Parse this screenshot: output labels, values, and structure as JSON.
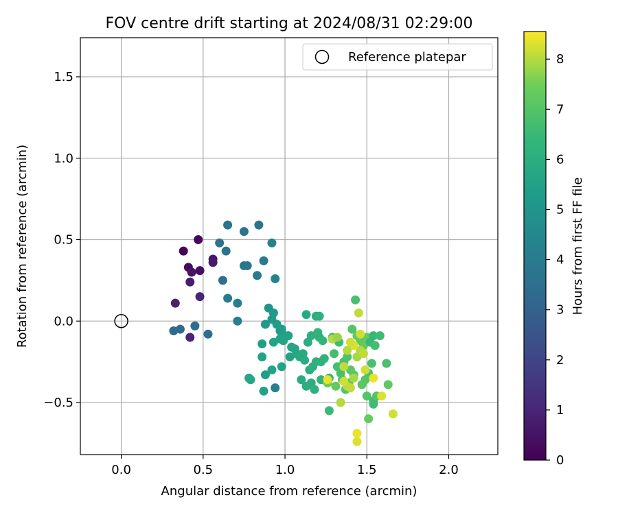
{
  "chart_data": {
    "type": "scatter",
    "title": "FOV centre drift starting at 2024/08/31 02:29:00",
    "xlabel": "Angular distance from reference (arcmin)",
    "ylabel": "Rotation from reference (arcmin)",
    "xlim": [
      -0.25,
      2.3
    ],
    "ylim": [
      -0.82,
      1.74
    ],
    "xticks": [
      0.0,
      0.5,
      1.0,
      1.5,
      2.0
    ],
    "xtick_labels": [
      "0.0",
      "0.5",
      "1.0",
      "1.5",
      "2.0"
    ],
    "yticks": [
      -0.5,
      0.0,
      0.5,
      1.0,
      1.5
    ],
    "ytick_labels": [
      "−0.5",
      "0.0",
      "0.5",
      "1.0",
      "1.5"
    ],
    "grid": true,
    "legend": {
      "placement": "top-right",
      "entries": [
        "Reference platepar"
      ]
    },
    "reference_point": {
      "x": 0.0,
      "y": 0.0,
      "label": "Reference platepar"
    },
    "colorbar": {
      "label": "Hours from first FF file",
      "colormap": "viridis",
      "range": [
        0,
        8.55
      ],
      "ticks": [
        0,
        1,
        2,
        3,
        4,
        5,
        6,
        7,
        8
      ],
      "tick_labels": [
        "0",
        "1",
        "2",
        "3",
        "4",
        "5",
        "6",
        "7",
        "8"
      ]
    },
    "points": [
      {
        "x": 0.38,
        "y": 0.43,
        "h": 0.1
      },
      {
        "x": 0.47,
        "y": 0.5,
        "h": 0.2
      },
      {
        "x": 0.41,
        "y": 0.33,
        "h": 0.3
      },
      {
        "x": 0.48,
        "y": 0.31,
        "h": 0.4
      },
      {
        "x": 0.43,
        "y": 0.3,
        "h": 0.5
      },
      {
        "x": 0.56,
        "y": 0.38,
        "h": 0.6
      },
      {
        "x": 0.56,
        "y": 0.36,
        "h": 0.7
      },
      {
        "x": 0.42,
        "y": 0.24,
        "h": 0.8
      },
      {
        "x": 0.33,
        "y": 0.11,
        "h": 0.9
      },
      {
        "x": 0.48,
        "y": 0.15,
        "h": 1.0
      },
      {
        "x": 0.42,
        "y": -0.1,
        "h": 1.0
      },
      {
        "x": 0.32,
        "y": -0.06,
        "h": 3.3
      },
      {
        "x": 0.36,
        "y": -0.05,
        "h": 3.3
      },
      {
        "x": 0.45,
        "y": -0.03,
        "h": 3.4
      },
      {
        "x": 0.53,
        "y": -0.08,
        "h": 3.4
      },
      {
        "x": 0.65,
        "y": 0.59,
        "h": 3.6
      },
      {
        "x": 0.6,
        "y": 0.48,
        "h": 3.6
      },
      {
        "x": 0.64,
        "y": 0.43,
        "h": 3.7
      },
      {
        "x": 0.75,
        "y": 0.55,
        "h": 3.7
      },
      {
        "x": 0.84,
        "y": 0.59,
        "h": 3.8
      },
      {
        "x": 0.62,
        "y": 0.25,
        "h": 3.5
      },
      {
        "x": 0.75,
        "y": 0.34,
        "h": 3.8
      },
      {
        "x": 0.77,
        "y": 0.34,
        "h": 3.8
      },
      {
        "x": 0.87,
        "y": 0.37,
        "h": 3.9
      },
      {
        "x": 0.83,
        "y": 0.28,
        "h": 3.9
      },
      {
        "x": 0.65,
        "y": 0.14,
        "h": 4.0
      },
      {
        "x": 0.71,
        "y": 0.11,
        "h": 4.1
      },
      {
        "x": 0.71,
        "y": 0.0,
        "h": 4.1
      },
      {
        "x": 0.92,
        "y": 0.48,
        "h": 4.2
      },
      {
        "x": 0.94,
        "y": 0.26,
        "h": 4.4
      },
      {
        "x": 0.94,
        "y": -0.41,
        "h": 4.2
      },
      {
        "x": 0.9,
        "y": 0.08,
        "h": 5.0
      },
      {
        "x": 0.93,
        "y": 0.05,
        "h": 5.1
      },
      {
        "x": 0.92,
        "y": 0.01,
        "h": 5.2
      },
      {
        "x": 0.88,
        "y": -0.02,
        "h": 5.2
      },
      {
        "x": 0.95,
        "y": -0.02,
        "h": 5.3
      },
      {
        "x": 0.97,
        "y": -0.06,
        "h": 5.3
      },
      {
        "x": 0.98,
        "y": -0.05,
        "h": 5.4
      },
      {
        "x": 1.0,
        "y": -0.09,
        "h": 5.4
      },
      {
        "x": 1.02,
        "y": -0.09,
        "h": 5.5
      },
      {
        "x": 0.97,
        "y": -0.11,
        "h": 5.5
      },
      {
        "x": 0.99,
        "y": -0.12,
        "h": 5.6
      },
      {
        "x": 0.93,
        "y": -0.13,
        "h": 5.6
      },
      {
        "x": 0.86,
        "y": -0.14,
        "h": 5.4
      },
      {
        "x": 1.04,
        "y": -0.16,
        "h": 5.6
      },
      {
        "x": 1.06,
        "y": -0.17,
        "h": 5.7
      },
      {
        "x": 1.03,
        "y": -0.22,
        "h": 5.5
      },
      {
        "x": 1.07,
        "y": -0.2,
        "h": 5.7
      },
      {
        "x": 1.09,
        "y": -0.22,
        "h": 5.8
      },
      {
        "x": 1.11,
        "y": -0.2,
        "h": 5.8
      },
      {
        "x": 1.12,
        "y": -0.24,
        "h": 5.9
      },
      {
        "x": 0.98,
        "y": -0.28,
        "h": 5.6
      },
      {
        "x": 0.92,
        "y": -0.3,
        "h": 5.5
      },
      {
        "x": 0.88,
        "y": -0.33,
        "h": 5.4
      },
      {
        "x": 0.86,
        "y": -0.22,
        "h": 5.5
      },
      {
        "x": 0.87,
        "y": -0.43,
        "h": 5.5
      },
      {
        "x": 0.78,
        "y": -0.35,
        "h": 5.6
      },
      {
        "x": 0.79,
        "y": -0.36,
        "h": 5.7
      },
      {
        "x": 1.13,
        "y": 0.04,
        "h": 5.8
      },
      {
        "x": 1.19,
        "y": 0.03,
        "h": 6.0
      },
      {
        "x": 1.21,
        "y": 0.03,
        "h": 6.1
      },
      {
        "x": 1.1,
        "y": -0.36,
        "h": 5.9
      },
      {
        "x": 1.13,
        "y": -0.4,
        "h": 6.0
      },
      {
        "x": 1.16,
        "y": -0.38,
        "h": 6.0
      },
      {
        "x": 1.18,
        "y": -0.42,
        "h": 6.1
      },
      {
        "x": 1.15,
        "y": -0.3,
        "h": 6.0
      },
      {
        "x": 1.17,
        "y": -0.28,
        "h": 6.1
      },
      {
        "x": 1.19,
        "y": -0.25,
        "h": 6.1
      },
      {
        "x": 1.22,
        "y": -0.25,
        "h": 6.2
      },
      {
        "x": 1.24,
        "y": -0.23,
        "h": 6.2
      },
      {
        "x": 1.16,
        "y": -0.09,
        "h": 6.1
      },
      {
        "x": 1.2,
        "y": -0.07,
        "h": 6.2
      },
      {
        "x": 1.21,
        "y": -0.1,
        "h": 6.2
      },
      {
        "x": 1.23,
        "y": -0.12,
        "h": 6.3
      },
      {
        "x": 1.14,
        "y": -0.13,
        "h": 6.0
      },
      {
        "x": 1.22,
        "y": -0.36,
        "h": 6.2
      },
      {
        "x": 1.27,
        "y": -0.35,
        "h": 6.4
      },
      {
        "x": 1.27,
        "y": -0.55,
        "h": 6.5
      },
      {
        "x": 1.29,
        "y": -0.1,
        "h": 6.5
      },
      {
        "x": 1.31,
        "y": -0.11,
        "h": 6.6
      },
      {
        "x": 1.33,
        "y": -0.13,
        "h": 6.6
      },
      {
        "x": 1.3,
        "y": -0.2,
        "h": 6.7
      },
      {
        "x": 1.32,
        "y": -0.28,
        "h": 6.7
      },
      {
        "x": 1.34,
        "y": -0.32,
        "h": 6.8
      },
      {
        "x": 1.36,
        "y": -0.25,
        "h": 6.8
      },
      {
        "x": 1.38,
        "y": -0.22,
        "h": 6.9
      },
      {
        "x": 1.35,
        "y": -0.36,
        "h": 6.9
      },
      {
        "x": 1.37,
        "y": -0.42,
        "h": 7.0
      },
      {
        "x": 1.39,
        "y": -0.38,
        "h": 7.0
      },
      {
        "x": 1.4,
        "y": -0.3,
        "h": 7.1
      },
      {
        "x": 1.42,
        "y": -0.33,
        "h": 7.1
      },
      {
        "x": 1.43,
        "y": 0.13,
        "h": 6.8
      },
      {
        "x": 1.41,
        "y": -0.05,
        "h": 7.0
      },
      {
        "x": 1.44,
        "y": -0.09,
        "h": 7.2
      },
      {
        "x": 1.46,
        "y": -0.12,
        "h": 7.2
      },
      {
        "x": 1.48,
        "y": -0.15,
        "h": 7.3
      },
      {
        "x": 1.5,
        "y": -0.1,
        "h": 7.3
      },
      {
        "x": 1.52,
        "y": -0.13,
        "h": 6.5
      },
      {
        "x": 1.54,
        "y": -0.09,
        "h": 6.4
      },
      {
        "x": 1.58,
        "y": -0.09,
        "h": 6.6
      },
      {
        "x": 1.55,
        "y": -0.15,
        "h": 6.7
      },
      {
        "x": 1.53,
        "y": -0.26,
        "h": 6.8
      },
      {
        "x": 1.51,
        "y": -0.32,
        "h": 6.9
      },
      {
        "x": 1.49,
        "y": -0.36,
        "h": 7.0
      },
      {
        "x": 1.47,
        "y": -0.39,
        "h": 7.1
      },
      {
        "x": 1.5,
        "y": -0.46,
        "h": 7.0
      },
      {
        "x": 1.54,
        "y": -0.49,
        "h": 6.7
      },
      {
        "x": 1.54,
        "y": -0.51,
        "h": 6.6
      },
      {
        "x": 1.56,
        "y": -0.46,
        "h": 7.0
      },
      {
        "x": 1.62,
        "y": -0.26,
        "h": 6.8
      },
      {
        "x": 1.63,
        "y": -0.39,
        "h": 7.2
      },
      {
        "x": 1.51,
        "y": -0.6,
        "h": 7.3
      },
      {
        "x": 1.26,
        "y": -0.38,
        "h": 7.4
      },
      {
        "x": 1.31,
        "y": -0.4,
        "h": 7.3
      },
      {
        "x": 1.34,
        "y": -0.5,
        "h": 8.0
      },
      {
        "x": 1.38,
        "y": -0.4,
        "h": 8.0
      },
      {
        "x": 1.4,
        "y": -0.41,
        "h": 8.1
      },
      {
        "x": 1.42,
        "y": -0.35,
        "h": 7.9
      },
      {
        "x": 1.44,
        "y": -0.22,
        "h": 7.9
      },
      {
        "x": 1.46,
        "y": -0.18,
        "h": 8.0
      },
      {
        "x": 1.48,
        "y": -0.2,
        "h": 8.1
      },
      {
        "x": 1.49,
        "y": -0.3,
        "h": 8.2
      },
      {
        "x": 1.45,
        "y": 0.05,
        "h": 8.1
      },
      {
        "x": 1.46,
        "y": -0.08,
        "h": 8.2
      },
      {
        "x": 1.42,
        "y": -0.15,
        "h": 8.3
      },
      {
        "x": 1.4,
        "y": -0.13,
        "h": 8.2
      },
      {
        "x": 1.38,
        "y": -0.18,
        "h": 8.0
      },
      {
        "x": 1.36,
        "y": -0.28,
        "h": 8.1
      },
      {
        "x": 1.36,
        "y": -0.37,
        "h": 8.2
      },
      {
        "x": 1.26,
        "y": -0.36,
        "h": 8.4
      },
      {
        "x": 1.29,
        "y": -0.11,
        "h": 8.0
      },
      {
        "x": 1.32,
        "y": -0.1,
        "h": 7.8
      },
      {
        "x": 1.54,
        "y": -0.35,
        "h": 8.4
      },
      {
        "x": 1.59,
        "y": -0.46,
        "h": 8.3
      },
      {
        "x": 1.66,
        "y": -0.57,
        "h": 8.2
      },
      {
        "x": 1.44,
        "y": -0.69,
        "h": 8.4
      },
      {
        "x": 1.44,
        "y": -0.74,
        "h": 8.3
      }
    ]
  }
}
